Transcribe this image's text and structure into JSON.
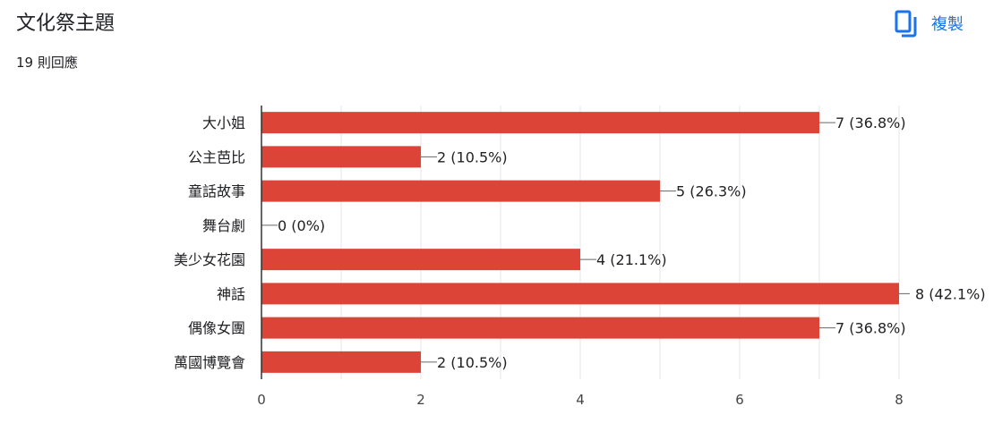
{
  "header": {
    "title": "文化祭主題",
    "response_count": "19 則回應",
    "copy_label": "複製",
    "copy_icon": "copy-icon"
  },
  "colors": {
    "bar": "#db4437",
    "accent": "#1a73e8",
    "grid": "#e6e6e6",
    "axis": "#333333",
    "text": "#202124"
  },
  "chart_data": {
    "type": "bar",
    "orientation": "horizontal",
    "categories": [
      "大小姐",
      "公主芭比",
      "童話故事",
      "舞台劇",
      "美少女花園",
      "神話",
      "偶像女團",
      "萬國博覽會"
    ],
    "values": [
      7,
      2,
      5,
      0,
      4,
      8,
      7,
      2
    ],
    "data_labels": [
      "7 (36.8%)",
      "2 (10.5%)",
      "5 (26.3%)",
      "0 (0%)",
      "4 (21.1%)",
      "8 (42.1%)",
      "7 (36.8%)",
      "2 (10.5%)"
    ],
    "xlim": [
      0,
      8
    ],
    "xticks": [
      0,
      2,
      4,
      6,
      8
    ],
    "grid": true,
    "legend": "none"
  }
}
